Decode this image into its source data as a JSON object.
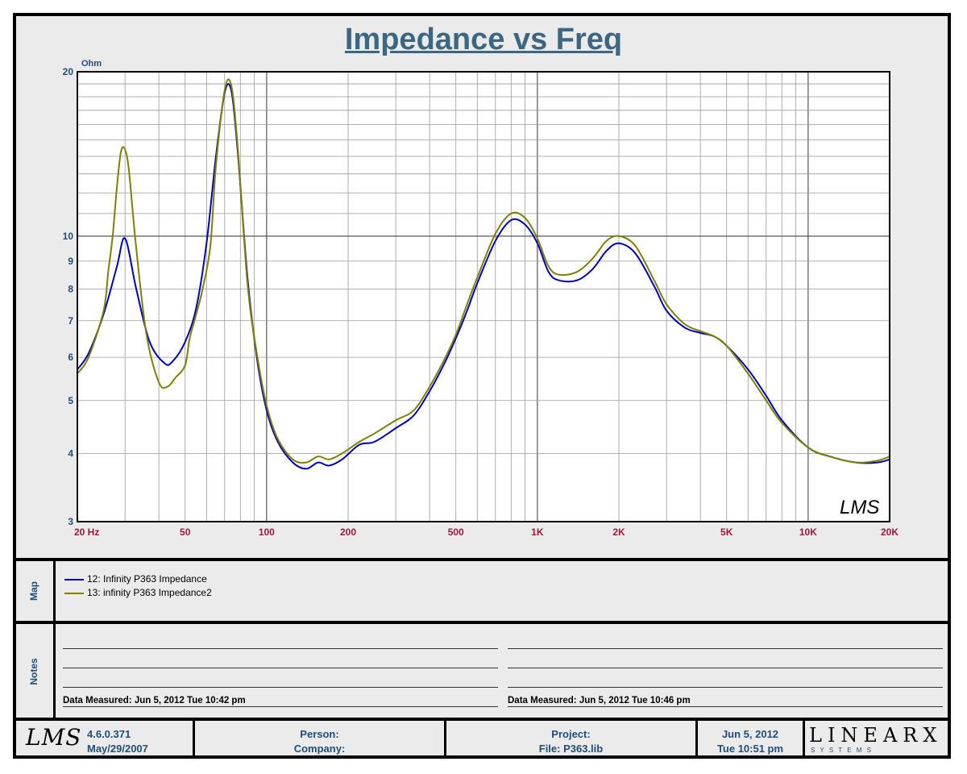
{
  "title": "Impedance vs Freq",
  "chart_data": {
    "type": "line",
    "title": "Impedance vs Freq",
    "ylabel": "Ohm",
    "xlabel": "",
    "x_scale": "log",
    "y_scale": "log",
    "xlim": [
      20,
      20000
    ],
    "ylim": [
      3,
      20
    ],
    "x_ticks": [
      {
        "value": 20,
        "label": "20  Hz"
      },
      {
        "value": 50,
        "label": "50"
      },
      {
        "value": 100,
        "label": "100"
      },
      {
        "value": 200,
        "label": "200"
      },
      {
        "value": 500,
        "label": "500"
      },
      {
        "value": 1000,
        "label": "1K"
      },
      {
        "value": 2000,
        "label": "2K"
      },
      {
        "value": 5000,
        "label": "5K"
      },
      {
        "value": 10000,
        "label": "10K"
      },
      {
        "value": 20000,
        "label": "20K"
      }
    ],
    "y_ticks": [
      {
        "value": 3,
        "label": "3"
      },
      {
        "value": 4,
        "label": "4"
      },
      {
        "value": 5,
        "label": "5"
      },
      {
        "value": 6,
        "label": "6"
      },
      {
        "value": 7,
        "label": "7"
      },
      {
        "value": 8,
        "label": "8"
      },
      {
        "value": 9,
        "label": "9"
      },
      {
        "value": 10,
        "label": "10"
      },
      {
        "value": 20,
        "label": "20"
      }
    ],
    "grid": true,
    "series": [
      {
        "name": "12: Infinity P363 Impedance",
        "color": "#0000c0",
        "x": [
          20,
          22,
          25,
          28,
          30,
          33,
          37,
          42,
          45,
          50,
          55,
          60,
          65,
          70,
          74,
          78,
          85,
          92,
          100,
          110,
          125,
          140,
          155,
          170,
          190,
          220,
          250,
          300,
          350,
          400,
          450,
          500,
          550,
          600,
          700,
          800,
          900,
          1000,
          1100,
          1200,
          1400,
          1600,
          1800,
          2000,
          2300,
          2700,
          3000,
          3500,
          4000,
          4500,
          5000,
          6000,
          7000,
          8000,
          10000,
          12000,
          15000,
          18000,
          20000
        ],
        "y": [
          5.7,
          6.1,
          7.2,
          8.8,
          9.9,
          8.0,
          6.4,
          5.85,
          5.9,
          6.4,
          7.4,
          9.7,
          14.0,
          18.3,
          18.5,
          14.5,
          8.4,
          6.0,
          4.8,
          4.2,
          3.85,
          3.75,
          3.85,
          3.8,
          3.9,
          4.15,
          4.2,
          4.45,
          4.7,
          5.2,
          5.8,
          6.5,
          7.3,
          8.2,
          9.8,
          10.7,
          10.5,
          9.7,
          8.6,
          8.3,
          8.3,
          8.7,
          9.4,
          9.7,
          9.3,
          8.1,
          7.3,
          6.8,
          6.65,
          6.55,
          6.3,
          5.7,
          5.1,
          4.6,
          4.1,
          3.95,
          3.85,
          3.85,
          3.9
        ]
      },
      {
        "name": "13: infinity P363 Impedance2",
        "color": "#808000",
        "x": [
          20,
          22,
          25,
          26,
          27,
          28,
          29,
          30,
          31,
          33,
          36,
          40,
          43,
          46,
          50,
          52,
          55,
          58,
          62,
          65,
          70,
          74,
          78,
          85,
          92,
          100,
          110,
          125,
          140,
          155,
          170,
          190,
          220,
          250,
          300,
          350,
          400,
          450,
          500,
          550,
          600,
          700,
          800,
          900,
          1000,
          1100,
          1200,
          1400,
          1600,
          1800,
          2000,
          2300,
          2700,
          3000,
          3500,
          4000,
          4500,
          5000,
          6000,
          7000,
          8000,
          10000,
          12000,
          15000,
          18000,
          20000
        ],
        "y": [
          5.6,
          6.0,
          7.3,
          8.6,
          10.0,
          12.3,
          14.3,
          14.4,
          13.2,
          9.5,
          6.6,
          5.4,
          5.3,
          5.5,
          5.8,
          6.5,
          7.2,
          8.0,
          9.6,
          13.5,
          18.5,
          18.9,
          14.8,
          8.2,
          6.1,
          4.9,
          4.25,
          3.9,
          3.85,
          3.95,
          3.9,
          4.0,
          4.2,
          4.35,
          4.6,
          4.8,
          5.3,
          5.9,
          6.6,
          7.5,
          8.4,
          10.1,
          11.0,
          10.8,
          9.9,
          8.8,
          8.5,
          8.6,
          9.1,
          9.8,
          10.0,
          9.6,
          8.3,
          7.5,
          6.9,
          6.7,
          6.55,
          6.3,
          5.6,
          5.0,
          4.55,
          4.1,
          3.95,
          3.85,
          3.88,
          3.95
        ]
      }
    ]
  },
  "map": {
    "label": "Map",
    "entries": [
      {
        "text": "12: Infinity P363 Impedance",
        "color": "#0000c0"
      },
      {
        "text": "13: infinity P363 Impedance2",
        "color": "#808000"
      }
    ]
  },
  "notes": {
    "label": "Notes",
    "left_measured": "Data Measured: Jun  5, 2012  Tue 10:42 pm",
    "right_measured": "Data Measured: Jun  5, 2012  Tue 10:46 pm"
  },
  "footer": {
    "logo": "LMS",
    "version": "4.6.0.371",
    "version_date": "May/29/2007",
    "person": "Person:",
    "company": "Company:",
    "project": "Project:",
    "file": "File: P363.lib",
    "date": "Jun  5, 2012",
    "time": "Tue 10:51 pm",
    "brand": "LINEARX",
    "brand_sub": "S Y S T E M S"
  },
  "watermark": "LMS"
}
